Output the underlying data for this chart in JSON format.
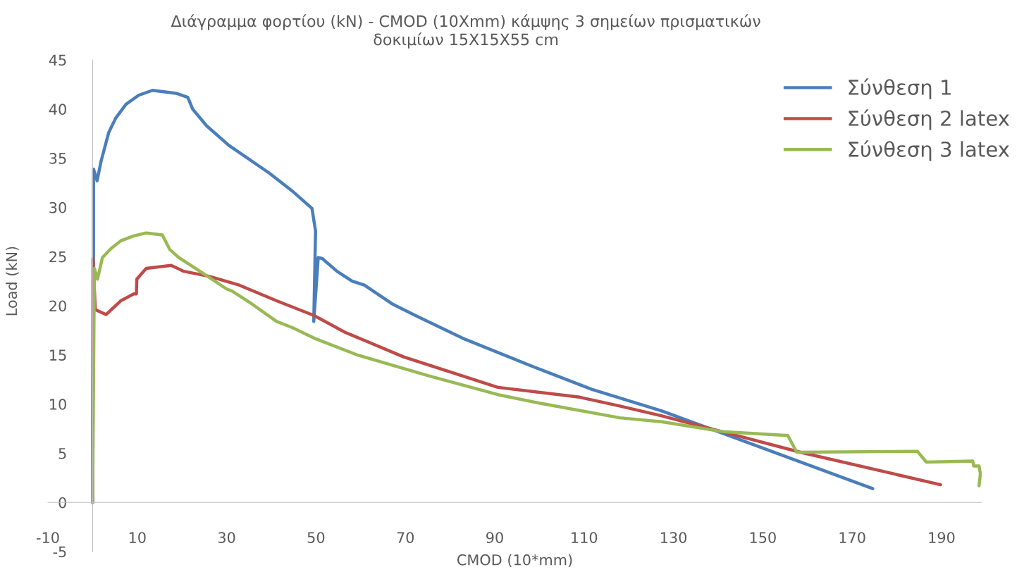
{
  "chart_data": {
    "type": "line",
    "title": "Διάγραμμα φορτίου (kN) - CMOD (10Xmm) κάμψης 3 σημείων πρισματικών\nδοκιμίων 15X15X55 cm",
    "xlabel": "CMOD (10*mm)",
    "ylabel": "Load (kN)",
    "xlim": [
      -10,
      199
    ],
    "xticks": [
      -10,
      10,
      30,
      50,
      70,
      90,
      110,
      130,
      150,
      170,
      190
    ],
    "ylim": [
      -5,
      45
    ],
    "yticks": [
      -5,
      0,
      5,
      10,
      15,
      20,
      25,
      30,
      35,
      40,
      45
    ],
    "grid": false,
    "legend": "top right",
    "marker": "none",
    "line_style": "solid",
    "series": [
      {
        "name": "Σύνθεση 1",
        "color": "#4a7ebb",
        "x": [
          0,
          0.2,
          0.2,
          1,
          1.9,
          3.6,
          5.2,
          7.5,
          10.3,
          13.4,
          18.7,
          21.3,
          22.4,
          25.5,
          30.5,
          39.5,
          44.6,
          49.1,
          49.9,
          49.5,
          50.5,
          51.4,
          54.7,
          58.1,
          60.8,
          67,
          72.3,
          82.8,
          98.6,
          111.7,
          127.4,
          174.6
        ],
        "values": [
          0,
          25,
          33.9,
          32.7,
          34.7,
          37.6,
          39.1,
          40.5,
          41.4,
          41.9,
          41.6,
          41.2,
          40.0,
          38.3,
          36.3,
          33.5,
          31.7,
          29.9,
          27.6,
          18.4,
          24.9,
          24.8,
          23.5,
          22.5,
          22.1,
          20.2,
          19.0,
          16.7,
          13.8,
          11.5,
          9.3,
          1.4
        ]
      },
      {
        "name": "Σύνθεση 2 latex",
        "color": "#be4b48",
        "x": [
          0,
          0.1,
          0.6,
          3,
          6.3,
          9.2,
          9.8,
          9.9,
          12,
          17.6,
          20.4,
          26,
          32.8,
          41.2,
          49.6,
          56.5,
          69.6,
          90.7,
          109,
          118,
          127.4,
          158.4,
          189.8
        ],
        "values": [
          0,
          24.8,
          19.6,
          19.1,
          20.5,
          21.2,
          21.2,
          22.7,
          23.8,
          24.1,
          23.5,
          23.0,
          22.1,
          20.5,
          19.0,
          17.3,
          14.8,
          11.7,
          10.7,
          9.8,
          8.8,
          5.1,
          1.8
        ]
      },
      {
        "name": "Σύνθεση 3 latex",
        "color": "#98b954",
        "x": [
          0,
          0.4,
          1.1,
          2.2,
          4.1,
          6.3,
          9.2,
          12,
          15.6,
          17.3,
          19.3,
          24.4,
          30,
          31.2,
          35.6,
          41.2,
          44.6,
          49.6,
          59.2,
          75,
          90.7,
          100,
          118,
          127.4,
          141,
          155.6,
          157.6,
          184.6,
          186.6,
          197,
          197.2,
          198.4,
          198.7,
          198.4
        ],
        "values": [
          0,
          23.8,
          22.7,
          24.9,
          25.8,
          26.6,
          27.1,
          27.4,
          27.2,
          25.7,
          24.9,
          23.4,
          21.7,
          21.5,
          20.2,
          18.4,
          17.8,
          16.7,
          15.0,
          12.9,
          10.96,
          10.1,
          8.6,
          8.2,
          7.2,
          6.8,
          5.1,
          5.2,
          4.1,
          4.2,
          3.7,
          3.7,
          2.9,
          1.7
        ]
      }
    ]
  }
}
